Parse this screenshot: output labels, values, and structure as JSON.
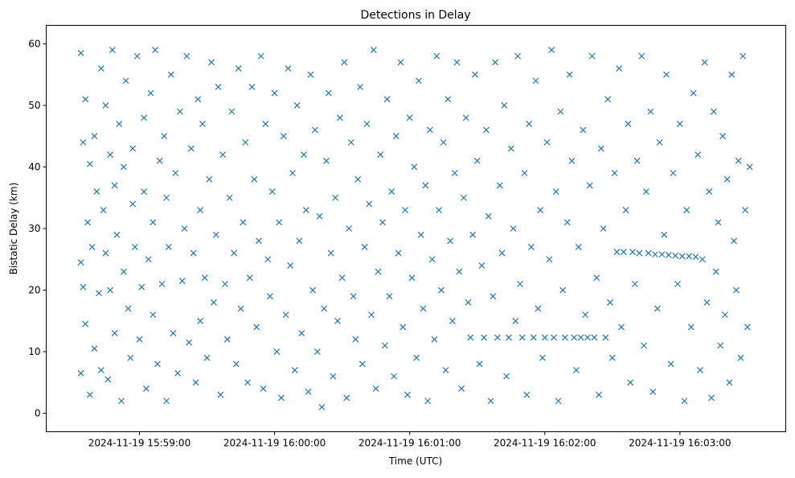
{
  "chart_data": {
    "type": "scatter",
    "title": "Detections in Delay",
    "xlabel": "Time (UTC)",
    "ylabel": "Bistatic Delay (km)",
    "x_units": "seconds after 2024-11-19 15:58:00 UTC",
    "xlim": [
      18.6,
      347
    ],
    "ylim": [
      -3,
      63
    ],
    "xticks": [
      {
        "value": 60,
        "label": "2024-11-19 15:59:00"
      },
      {
        "value": 120,
        "label": "2024-11-19 16:00:00"
      },
      {
        "value": 180,
        "label": "2024-11-19 16:01:00"
      },
      {
        "value": 240,
        "label": "2024-11-19 16:02:00"
      },
      {
        "value": 300,
        "label": "2024-11-19 16:03:00"
      }
    ],
    "yticks": [
      0,
      10,
      20,
      30,
      40,
      50,
      60
    ],
    "marker": "x",
    "color": "#1f77b4",
    "grid": false,
    "points": [
      [
        34,
        58.5
      ],
      [
        34,
        24.5
      ],
      [
        34,
        6.5
      ],
      [
        35,
        44
      ],
      [
        35,
        20.5
      ],
      [
        36,
        51
      ],
      [
        36,
        14.5
      ],
      [
        37,
        31
      ],
      [
        38,
        40.5
      ],
      [
        38,
        3
      ],
      [
        39,
        27
      ],
      [
        40,
        45
      ],
      [
        40,
        10.5
      ],
      [
        41,
        36
      ],
      [
        42,
        19.5
      ],
      [
        43,
        56
      ],
      [
        43,
        7
      ],
      [
        44,
        33
      ],
      [
        45,
        50
      ],
      [
        45,
        26
      ],
      [
        46,
        5.5
      ],
      [
        47,
        42
      ],
      [
        47,
        20
      ],
      [
        48,
        59
      ],
      [
        49,
        37
      ],
      [
        49,
        13
      ],
      [
        50,
        29
      ],
      [
        51,
        47
      ],
      [
        52,
        2
      ],
      [
        53,
        23
      ],
      [
        53,
        40
      ],
      [
        54,
        54
      ],
      [
        55,
        17
      ],
      [
        56,
        9
      ],
      [
        57,
        34
      ],
      [
        57,
        43
      ],
      [
        58,
        27
      ],
      [
        59,
        58
      ],
      [
        60,
        12
      ],
      [
        61,
        20.5
      ],
      [
        62,
        48
      ],
      [
        62,
        36
      ],
      [
        63,
        4
      ],
      [
        64,
        25
      ],
      [
        65,
        52
      ],
      [
        66,
        31
      ],
      [
        66,
        16
      ],
      [
        67,
        59
      ],
      [
        68,
        8
      ],
      [
        69,
        41
      ],
      [
        70,
        21
      ],
      [
        71,
        45
      ],
      [
        72,
        35
      ],
      [
        72,
        2
      ],
      [
        73,
        27
      ],
      [
        74,
        55
      ],
      [
        75,
        13
      ],
      [
        76,
        39
      ],
      [
        77,
        6.5
      ],
      [
        78,
        49
      ],
      [
        79,
        21.5
      ],
      [
        80,
        30
      ],
      [
        81,
        58
      ],
      [
        82,
        11.5
      ],
      [
        83,
        43
      ],
      [
        84,
        26
      ],
      [
        85,
        5
      ],
      [
        86,
        51
      ],
      [
        87,
        33
      ],
      [
        87,
        15
      ],
      [
        88,
        47
      ],
      [
        89,
        22
      ],
      [
        90,
        9
      ],
      [
        91,
        38
      ],
      [
        92,
        57
      ],
      [
        93,
        18
      ],
      [
        94,
        29
      ],
      [
        95,
        53
      ],
      [
        96,
        3
      ],
      [
        97,
        42
      ],
      [
        98,
        21
      ],
      [
        99,
        12
      ],
      [
        100,
        35
      ],
      [
        101,
        49
      ],
      [
        102,
        26
      ],
      [
        103,
        8
      ],
      [
        104,
        56
      ],
      [
        105,
        17
      ],
      [
        106,
        31
      ],
      [
        107,
        44
      ],
      [
        108,
        5
      ],
      [
        109,
        22
      ],
      [
        110,
        53
      ],
      [
        111,
        38
      ],
      [
        112,
        14
      ],
      [
        113,
        28
      ],
      [
        114,
        58
      ],
      [
        115,
        4
      ],
      [
        116,
        47
      ],
      [
        117,
        25
      ],
      [
        118,
        19
      ],
      [
        119,
        36
      ],
      [
        120,
        52
      ],
      [
        121,
        10
      ],
      [
        122,
        31
      ],
      [
        123,
        2.5
      ],
      [
        124,
        45
      ],
      [
        125,
        16
      ],
      [
        126,
        56
      ],
      [
        127,
        24
      ],
      [
        128,
        39
      ],
      [
        129,
        7
      ],
      [
        130,
        50
      ],
      [
        131,
        28
      ],
      [
        132,
        13
      ],
      [
        133,
        42
      ],
      [
        134,
        33
      ],
      [
        135,
        3.5
      ],
      [
        136,
        55
      ],
      [
        137,
        20
      ],
      [
        138,
        46
      ],
      [
        139,
        10
      ],
      [
        140,
        32
      ],
      [
        141,
        1
      ],
      [
        142,
        17
      ],
      [
        143,
        41
      ],
      [
        144,
        52
      ],
      [
        145,
        26
      ],
      [
        146,
        6
      ],
      [
        147,
        35
      ],
      [
        148,
        15
      ],
      [
        149,
        48
      ],
      [
        150,
        22
      ],
      [
        151,
        57
      ],
      [
        152,
        2.5
      ],
      [
        153,
        30
      ],
      [
        154,
        44
      ],
      [
        155,
        19
      ],
      [
        156,
        12
      ],
      [
        157,
        38
      ],
      [
        158,
        53
      ],
      [
        159,
        8
      ],
      [
        160,
        27
      ],
      [
        161,
        47
      ],
      [
        162,
        34
      ],
      [
        163,
        16
      ],
      [
        164,
        59
      ],
      [
        165,
        4
      ],
      [
        166,
        23
      ],
      [
        167,
        42
      ],
      [
        168,
        31
      ],
      [
        169,
        11
      ],
      [
        170,
        51
      ],
      [
        171,
        19
      ],
      [
        172,
        36
      ],
      [
        173,
        6
      ],
      [
        174,
        45
      ],
      [
        175,
        26
      ],
      [
        176,
        57
      ],
      [
        177,
        14
      ],
      [
        178,
        33
      ],
      [
        179,
        3
      ],
      [
        180,
        48
      ],
      [
        181,
        22
      ],
      [
        182,
        40
      ],
      [
        183,
        9
      ],
      [
        184,
        54
      ],
      [
        185,
        29
      ],
      [
        186,
        17
      ],
      [
        187,
        37
      ],
      [
        188,
        2
      ],
      [
        189,
        46
      ],
      [
        190,
        25
      ],
      [
        191,
        12
      ],
      [
        192,
        58
      ],
      [
        193,
        33
      ],
      [
        194,
        20
      ],
      [
        195,
        44
      ],
      [
        196,
        7
      ],
      [
        197,
        51
      ],
      [
        198,
        28
      ],
      [
        199,
        15
      ],
      [
        200,
        39
      ],
      [
        201,
        57
      ],
      [
        202,
        23
      ],
      [
        203,
        4
      ],
      [
        204,
        35
      ],
      [
        205,
        48
      ],
      [
        206,
        18
      ],
      [
        207,
        12.3
      ],
      [
        208,
        29
      ],
      [
        209,
        55
      ],
      [
        210,
        41
      ],
      [
        211,
        8
      ],
      [
        212,
        24
      ],
      [
        213,
        12.3
      ],
      [
        214,
        46
      ],
      [
        215,
        32
      ],
      [
        216,
        2
      ],
      [
        217,
        19
      ],
      [
        218,
        57
      ],
      [
        219,
        12.3
      ],
      [
        220,
        37
      ],
      [
        221,
        26
      ],
      [
        222,
        50
      ],
      [
        223,
        6
      ],
      [
        224,
        12.3
      ],
      [
        225,
        43
      ],
      [
        226,
        30
      ],
      [
        227,
        15
      ],
      [
        228,
        58
      ],
      [
        229,
        21
      ],
      [
        230,
        12.3
      ],
      [
        231,
        39
      ],
      [
        232,
        3
      ],
      [
        233,
        47
      ],
      [
        234,
        27
      ],
      [
        235,
        12.3
      ],
      [
        236,
        54
      ],
      [
        237,
        17
      ],
      [
        238,
        33
      ],
      [
        239,
        9
      ],
      [
        240,
        12.3
      ],
      [
        241,
        44
      ],
      [
        242,
        25
      ],
      [
        243,
        59
      ],
      [
        244,
        12.3
      ],
      [
        245,
        36
      ],
      [
        246,
        2
      ],
      [
        247,
        49
      ],
      [
        248,
        20
      ],
      [
        249,
        12.3
      ],
      [
        250,
        31
      ],
      [
        251,
        55
      ],
      [
        252,
        41
      ],
      [
        253,
        12.3
      ],
      [
        254,
        7
      ],
      [
        255,
        27
      ],
      [
        256,
        12.3
      ],
      [
        257,
        46
      ],
      [
        258,
        16
      ],
      [
        259,
        12.3
      ],
      [
        260,
        37
      ],
      [
        261,
        58
      ],
      [
        262,
        12.3
      ],
      [
        263,
        22
      ],
      [
        264,
        3
      ],
      [
        265,
        43
      ],
      [
        266,
        30
      ],
      [
        267,
        12.3
      ],
      [
        268,
        51
      ],
      [
        269,
        18
      ],
      [
        270,
        9
      ],
      [
        271,
        39
      ],
      [
        272,
        26.2
      ],
      [
        273,
        56
      ],
      [
        274,
        14
      ],
      [
        275,
        26.2
      ],
      [
        276,
        33
      ],
      [
        277,
        47
      ],
      [
        278,
        5
      ],
      [
        279,
        26.2
      ],
      [
        280,
        21
      ],
      [
        281,
        41
      ],
      [
        282,
        26
      ],
      [
        283,
        58
      ],
      [
        284,
        11
      ],
      [
        285,
        36
      ],
      [
        286,
        26
      ],
      [
        287,
        49
      ],
      [
        288,
        3.5
      ],
      [
        289,
        25.8
      ],
      [
        290,
        17
      ],
      [
        291,
        44
      ],
      [
        292,
        25.8
      ],
      [
        293,
        29
      ],
      [
        294,
        55
      ],
      [
        295,
        25.7
      ],
      [
        296,
        8
      ],
      [
        297,
        39
      ],
      [
        298,
        25.6
      ],
      [
        299,
        21
      ],
      [
        300,
        47
      ],
      [
        301,
        25.5
      ],
      [
        302,
        2
      ],
      [
        303,
        33
      ],
      [
        304,
        25.5
      ],
      [
        305,
        14
      ],
      [
        306,
        52
      ],
      [
        307,
        25.4
      ],
      [
        308,
        42
      ],
      [
        309,
        7
      ],
      [
        310,
        25
      ],
      [
        311,
        57
      ],
      [
        312,
        18
      ],
      [
        313,
        36
      ],
      [
        314,
        2.5
      ],
      [
        315,
        49
      ],
      [
        316,
        23
      ],
      [
        317,
        31
      ],
      [
        318,
        11
      ],
      [
        319,
        45
      ],
      [
        320,
        16
      ],
      [
        321,
        38
      ],
      [
        322,
        5
      ],
      [
        323,
        55
      ],
      [
        324,
        28
      ],
      [
        325,
        20
      ],
      [
        326,
        41
      ],
      [
        327,
        9
      ],
      [
        328,
        58
      ],
      [
        329,
        33
      ],
      [
        330,
        14
      ],
      [
        331,
        40
      ]
    ]
  }
}
